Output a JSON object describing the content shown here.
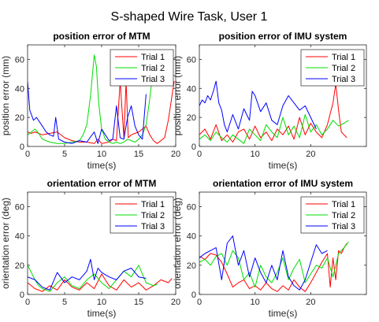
{
  "figure": {
    "title": "S-shaped Wire Task, User 1"
  },
  "chart_data": [
    {
      "type": "line",
      "title": "position error of MTM",
      "xlabel": "time(s)",
      "ylabel": "position error (mm)",
      "xlim": [
        0,
        20
      ],
      "ylim": [
        0,
        70
      ],
      "xticks": [
        0,
        5,
        10,
        15,
        20
      ],
      "yticks": [
        0,
        20,
        40,
        60
      ],
      "legend": "top-right",
      "series": [
        {
          "name": "Trial 1",
          "color": "#ff0000",
          "x": [
            0,
            0.5,
            1,
            2,
            3,
            4,
            5,
            6,
            7,
            8,
            9,
            9.5,
            10,
            11,
            11.5,
            12,
            12.5,
            13,
            13.3,
            13.6,
            14,
            14.5,
            15,
            15.5,
            16,
            16.5,
            17,
            17.5,
            18,
            18.5,
            19,
            19.5,
            19.8
          ],
          "y": [
            10,
            9,
            10,
            8,
            9,
            10,
            6,
            4,
            3,
            3,
            2,
            5,
            2,
            3,
            5,
            4,
            45,
            6,
            45,
            6,
            8,
            9,
            10,
            12,
            14,
            8,
            4,
            2,
            4,
            6,
            18,
            35,
            45
          ]
        },
        {
          "name": "Trial 2",
          "color": "#00dd00",
          "x": [
            0,
            0.5,
            1,
            1.5,
            2,
            3,
            4,
            5,
            6,
            7,
            7.5,
            8,
            8.5,
            9,
            9.3,
            9.6,
            10,
            10.5,
            11,
            11.5,
            12,
            12.5,
            13,
            13.5,
            14,
            14.5,
            15,
            15.5,
            16,
            16.5,
            17,
            17.5
          ],
          "y": [
            8,
            10,
            12,
            9,
            5,
            3,
            2,
            2,
            3,
            4,
            8,
            15,
            35,
            63,
            55,
            30,
            12,
            5,
            3,
            2,
            3,
            2,
            3,
            5,
            4,
            3,
            5,
            8,
            15,
            33,
            55,
            62
          ]
        },
        {
          "name": "Trial 3",
          "color": "#0000ff",
          "x": [
            0,
            0.3,
            0.8,
            1.2,
            2,
            2.5,
            3,
            3.5,
            3.8,
            4.2,
            5,
            6,
            7,
            8,
            9,
            9.5,
            10,
            10.5,
            11,
            11.5,
            12,
            12.5,
            13,
            13.5,
            14,
            14.5,
            15,
            15.5,
            16
          ],
          "y": [
            45,
            25,
            18,
            20,
            14,
            10,
            8,
            7,
            20,
            5,
            3,
            2,
            4,
            3,
            10,
            2,
            12,
            8,
            4,
            5,
            28,
            6,
            5,
            20,
            28,
            14,
            8,
            5,
            36
          ]
        }
      ]
    },
    {
      "type": "line",
      "title": "position error of IMU system",
      "xlabel": "time(s)",
      "ylabel": "position error (mm)",
      "xlim": [
        0,
        30
      ],
      "ylim": [
        0,
        70
      ],
      "xticks": [
        0,
        10,
        20
      ],
      "yticks": [
        0,
        20,
        40,
        60
      ],
      "legend": "top-right",
      "series": [
        {
          "name": "Trial 1",
          "color": "#ff0000",
          "x": [
            0,
            1,
            2,
            3,
            4,
            5,
            6,
            7,
            8,
            9,
            10,
            11,
            12,
            13,
            14,
            15,
            16,
            17,
            18,
            19,
            20,
            21,
            22,
            23,
            24,
            24.5,
            25,
            25.5,
            26,
            26.5
          ],
          "y": [
            8,
            12,
            5,
            15,
            4,
            8,
            3,
            10,
            12,
            5,
            14,
            6,
            10,
            4,
            12,
            8,
            14,
            5,
            20,
            8,
            16,
            10,
            6,
            15,
            30,
            43,
            25,
            10,
            8,
            6
          ]
        },
        {
          "name": "Trial 2",
          "color": "#00dd00",
          "x": [
            0,
            1,
            2,
            3,
            4,
            5,
            6,
            7,
            8,
            9,
            10,
            11,
            12,
            13,
            14,
            15,
            16,
            17,
            18,
            19,
            20,
            21,
            22,
            23,
            24,
            25,
            26,
            26.8
          ],
          "y": [
            5,
            8,
            4,
            10,
            6,
            3,
            8,
            5,
            2,
            12,
            8,
            4,
            15,
            10,
            6,
            20,
            8,
            14,
            6,
            22,
            10,
            15,
            8,
            12,
            18,
            14,
            16,
            18
          ]
        },
        {
          "name": "Trial 3",
          "color": "#0000ff",
          "x": [
            0,
            0.5,
            1,
            1.5,
            2,
            2.5,
            3,
            3.5,
            4,
            4.5,
            5,
            6,
            7,
            8,
            9,
            9.5,
            10,
            11,
            12,
            13,
            14,
            15,
            16,
            17,
            18,
            19,
            20,
            21
          ],
          "y": [
            28,
            32,
            30,
            35,
            32,
            38,
            45,
            30,
            25,
            15,
            10,
            22,
            12,
            26,
            18,
            38,
            35,
            24,
            30,
            18,
            15,
            28,
            35,
            30,
            25,
            28,
            20,
            12
          ]
        }
      ]
    },
    {
      "type": "line",
      "title": "orientation error of MTM",
      "xlabel": "time(s)",
      "ylabel": "orientation error (deg)",
      "xlim": [
        0,
        20
      ],
      "ylim": [
        0,
        70
      ],
      "xticks": [
        0,
        5,
        10,
        15,
        20
      ],
      "yticks": [
        0,
        20,
        40,
        60
      ],
      "legend": "top-right",
      "series": [
        {
          "name": "Trial 1",
          "color": "#ff0000",
          "x": [
            0,
            1,
            2,
            3,
            4,
            5,
            6,
            7,
            8,
            9,
            10,
            11,
            12,
            13,
            14,
            15,
            16,
            17,
            18,
            19,
            19.5
          ],
          "y": [
            8,
            4,
            2,
            6,
            3,
            10,
            5,
            3,
            8,
            4,
            14,
            6,
            3,
            10,
            5,
            8,
            3,
            6,
            10,
            8,
            11
          ]
        },
        {
          "name": "Trial 2",
          "color": "#00dd00",
          "x": [
            0,
            0.5,
            1,
            1.5,
            2,
            3,
            4,
            5,
            6,
            7,
            8,
            9,
            10,
            11,
            12,
            13,
            14,
            15,
            16,
            17,
            17.5
          ],
          "y": [
            20,
            15,
            10,
            6,
            4,
            2,
            8,
            12,
            6,
            4,
            10,
            14,
            8,
            4,
            10,
            16,
            12,
            20,
            8,
            6,
            7
          ]
        },
        {
          "name": "Trial 3",
          "color": "#0000ff",
          "x": [
            0,
            1,
            2,
            3,
            4,
            5,
            6,
            7,
            8,
            8.5,
            9,
            9.5,
            10,
            11,
            12,
            13,
            14,
            15,
            16
          ],
          "y": [
            12,
            10,
            5,
            3,
            15,
            8,
            12,
            10,
            16,
            24,
            10,
            18,
            15,
            12,
            10,
            16,
            18,
            12,
            11
          ]
        }
      ]
    },
    {
      "type": "line",
      "title": "orientation error of IMU system",
      "xlabel": "time(s)",
      "ylabel": "orientation error (deg)",
      "xlim": [
        0,
        30
      ],
      "ylim": [
        0,
        70
      ],
      "xticks": [
        0,
        10,
        20
      ],
      "yticks": [
        0,
        20,
        40,
        60
      ],
      "legend": "top-right",
      "series": [
        {
          "name": "Trial 1",
          "color": "#ff0000",
          "x": [
            0,
            1,
            2,
            3,
            4,
            5,
            6,
            7,
            8,
            9,
            10,
            11,
            12,
            13,
            14,
            15,
            16,
            17,
            18,
            19,
            20,
            21,
            22,
            23,
            23.5,
            24,
            24.5,
            25,
            25.5,
            26,
            26.5
          ],
          "y": [
            26,
            24,
            28,
            27,
            22,
            14,
            5,
            8,
            10,
            4,
            6,
            3,
            8,
            4,
            2,
            6,
            3,
            10,
            5,
            2,
            8,
            15,
            22,
            28,
            5,
            25,
            10,
            30,
            28,
            32,
            35
          ]
        },
        {
          "name": "Trial 2",
          "color": "#00dd00",
          "x": [
            0,
            1,
            2,
            3,
            4,
            5,
            6,
            7,
            8,
            9,
            10,
            11,
            12,
            13,
            14,
            15,
            16,
            17,
            18,
            19,
            20,
            21,
            22,
            23,
            24,
            25,
            26,
            26.8
          ],
          "y": [
            22,
            24,
            20,
            26,
            28,
            20,
            30,
            25,
            10,
            15,
            5,
            20,
            12,
            8,
            15,
            25,
            10,
            18,
            24,
            8,
            14,
            20,
            18,
            25,
            12,
            28,
            32,
            36
          ]
        },
        {
          "name": "Trial 3",
          "color": "#0000ff",
          "x": [
            0,
            1,
            2,
            3,
            4,
            5,
            6,
            7,
            8,
            9,
            10,
            11,
            12,
            13,
            14,
            15,
            16,
            17,
            18,
            19,
            20,
            21,
            22,
            23
          ],
          "y": [
            25,
            28,
            30,
            32,
            10,
            35,
            40,
            20,
            30,
            12,
            25,
            15,
            8,
            20,
            10,
            30,
            12,
            6,
            3,
            10,
            22,
            34,
            28,
            30
          ]
        }
      ]
    }
  ]
}
